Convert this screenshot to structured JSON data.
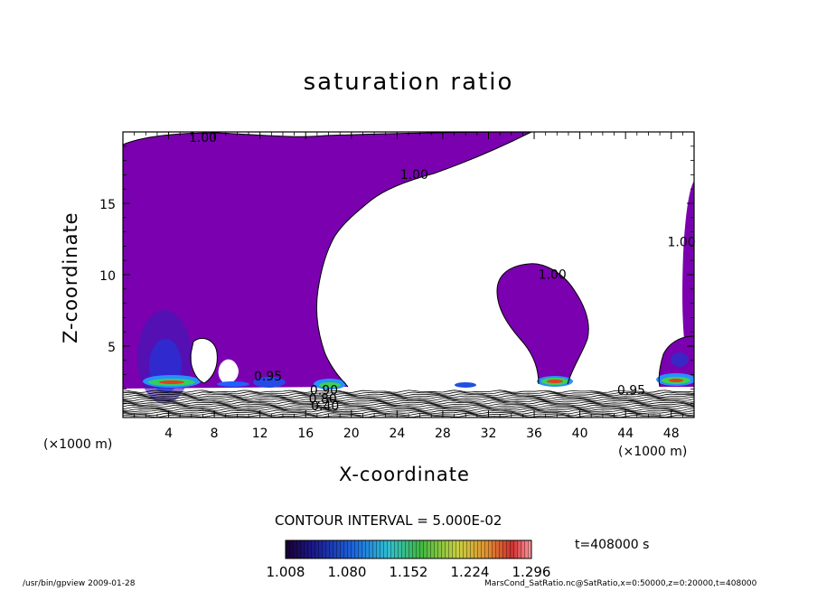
{
  "page": {
    "footer_left": "/usr/bin/gpview  2009-01-28",
    "footer_right": "MarsCond_SatRatio.nc@SatRatio,x=0:50000,z=0:20000,t=408000",
    "time_label": "t=408000 s",
    "contour_interval": "CONTOUR INTERVAL = 5.000E-02",
    "x_unit": "(×1000 m)"
  },
  "chart_data": {
    "type": "heatmap",
    "title": "saturation ratio",
    "xlabel": "X-coordinate",
    "ylabel": "Z-coordinate",
    "xlim": [
      0,
      50
    ],
    "ylim": [
      0,
      20
    ],
    "x_ticks": [
      4,
      8,
      12,
      16,
      20,
      24,
      28,
      32,
      36,
      40,
      44,
      48
    ],
    "y_ticks": [
      5,
      10,
      15
    ],
    "x_units": "(×1000 m)",
    "contour_interval": 0.05,
    "contour_labels": [
      {
        "text": "1.00",
        "x": 7,
        "z": 19.3
      },
      {
        "text": "1.00",
        "x": 25.5,
        "z": 16.7
      },
      {
        "text": "1.00",
        "x": 37.6,
        "z": 9.7
      },
      {
        "text": "1.00",
        "x": 48.9,
        "z": 12.0
      },
      {
        "text": "0.95",
        "x": 12.7,
        "z": 2.6
      },
      {
        "text": "0.90",
        "x": 17.6,
        "z": 1.6
      },
      {
        "text": "0.80",
        "x": 17.5,
        "z": 1.0
      },
      {
        "text": "0.40",
        "x": 17.7,
        "z": 0.5
      },
      {
        "text": "0.95",
        "x": 44.5,
        "z": 1.6
      }
    ],
    "colorbar": {
      "min": 1.008,
      "max": 1.296,
      "tick_labels": [
        "1.008",
        "1.080",
        "1.152",
        "1.224",
        "1.296"
      ]
    },
    "time": 408000,
    "colors": {
      "supersaturated_fill": "#7a00b0",
      "background": "#ffffff"
    }
  }
}
